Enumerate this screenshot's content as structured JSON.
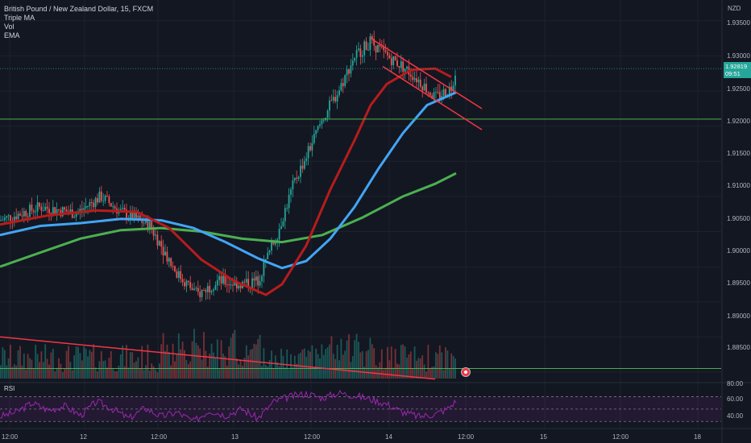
{
  "header": {
    "symbol_line": "British Pound / New Zealand Dollar, 15, FXCM",
    "indicators": [
      "Triple MA",
      "Vol",
      "EMA"
    ]
  },
  "price_axis": {
    "currency": "NZD",
    "ticks": [
      "1.93500",
      "1.93000",
      "1.92500",
      "1.92000",
      "1.91500",
      "1.91000",
      "1.90500",
      "1.90000",
      "1.89500",
      "1.89000",
      "1.88500"
    ]
  },
  "last_price": {
    "value": "1.92819",
    "countdown": "09:51"
  },
  "rsi": {
    "label": "RSI",
    "ticks": [
      "80.00",
      "60.00",
      "40.00"
    ]
  },
  "time_axis": {
    "ticks": [
      "12:00",
      "12",
      "12:00",
      "13",
      "12:00",
      "14",
      "12:00",
      "15",
      "12:00",
      "18"
    ]
  },
  "colors": {
    "background": "#131722",
    "up": "#26a69a",
    "down": "#ef5350",
    "ma_fast": "#ff2a2a",
    "ma_mid": "#42a5f5",
    "ma_slow": "#4caf50",
    "rsi": "#9c27b0",
    "trendline": "#f23645",
    "hline": "#4caf50"
  },
  "chart_data": {
    "type": "candlestick",
    "symbol": "GBP/NZD",
    "timeframe": "15",
    "y_range": [
      1.8835,
      1.9375
    ],
    "close_path": [
      [
        0,
        1.9066
      ],
      [
        50,
        1.9085
      ],
      [
        95,
        1.9076
      ],
      [
        125,
        1.91
      ],
      [
        150,
        1.9078
      ],
      [
        185,
        1.906
      ],
      [
        220,
        1.899
      ],
      [
        245,
        1.896
      ],
      [
        270,
        1.898
      ],
      [
        300,
        1.8975
      ],
      [
        320,
        1.898
      ],
      [
        345,
        1.905
      ],
      [
        365,
        1.912
      ],
      [
        385,
        1.917
      ],
      [
        400,
        1.921
      ],
      [
        420,
        1.925
      ],
      [
        440,
        1.93
      ],
      [
        460,
        1.932
      ],
      [
        480,
        1.93
      ],
      [
        500,
        1.9285
      ],
      [
        520,
        1.9265
      ],
      [
        540,
        1.924
      ],
      [
        560,
        1.9255
      ],
      [
        566,
        1.9282
      ]
    ],
    "ema_fast": [
      [
        0,
        1.906
      ],
      [
        60,
        1.9073
      ],
      [
        120,
        1.908
      ],
      [
        170,
        1.9078
      ],
      [
        210,
        1.9055
      ],
      [
        250,
        1.901
      ],
      [
        290,
        1.898
      ],
      [
        330,
        1.896
      ],
      [
        350,
        1.8975
      ],
      [
        380,
        1.903
      ],
      [
        410,
        1.911
      ],
      [
        440,
        1.918
      ],
      [
        460,
        1.923
      ],
      [
        480,
        1.926
      ],
      [
        510,
        1.928
      ],
      [
        540,
        1.9282
      ],
      [
        560,
        1.927
      ]
    ],
    "ma_mid": [
      [
        0,
        1.9045
      ],
      [
        50,
        1.9058
      ],
      [
        100,
        1.9062
      ],
      [
        150,
        1.9068
      ],
      [
        200,
        1.9066
      ],
      [
        240,
        1.9055
      ],
      [
        280,
        1.9035
      ],
      [
        320,
        1.9012
      ],
      [
        350,
        1.8998
      ],
      [
        380,
        1.9008
      ],
      [
        410,
        1.904
      ],
      [
        440,
        1.9085
      ],
      [
        470,
        1.914
      ],
      [
        500,
        1.919
      ],
      [
        530,
        1.923
      ],
      [
        566,
        1.9248
      ]
    ],
    "ma_slow": [
      [
        0,
        1.9
      ],
      [
        50,
        1.902
      ],
      [
        100,
        1.904
      ],
      [
        150,
        1.9052
      ],
      [
        200,
        1.9055
      ],
      [
        250,
        1.905
      ],
      [
        300,
        1.904
      ],
      [
        350,
        1.9035
      ],
      [
        400,
        1.9045
      ],
      [
        450,
        1.907
      ],
      [
        500,
        1.91
      ],
      [
        540,
        1.9118
      ],
      [
        566,
        1.9133
      ]
    ],
    "horizontal_lines": [
      1.921,
      1.8855
    ],
    "trendlines": [
      {
        "from": [
          0,
          1.89
        ],
        "to": [
          540,
          1.884
        ]
      },
      {
        "from": [
          460,
          1.9325
        ],
        "to": [
          598,
          1.9225
        ]
      },
      {
        "from": [
          475,
          1.9285
        ],
        "to": [
          598,
          1.9195
        ]
      }
    ],
    "rsi_range": [
      20,
      90
    ],
    "rsi_levels": [
      70,
      50,
      30
    ],
    "rsi_path": [
      [
        0,
        38
      ],
      [
        20,
        45
      ],
      [
        40,
        60
      ],
      [
        60,
        48
      ],
      [
        80,
        55
      ],
      [
        100,
        40
      ],
      [
        120,
        62
      ],
      [
        140,
        50
      ],
      [
        160,
        35
      ],
      [
        180,
        52
      ],
      [
        200,
        38
      ],
      [
        220,
        45
      ],
      [
        240,
        30
      ],
      [
        260,
        48
      ],
      [
        280,
        40
      ],
      [
        300,
        50
      ],
      [
        320,
        35
      ],
      [
        340,
        62
      ],
      [
        360,
        70
      ],
      [
        380,
        75
      ],
      [
        400,
        68
      ],
      [
        420,
        76
      ],
      [
        440,
        72
      ],
      [
        460,
        66
      ],
      [
        480,
        58
      ],
      [
        500,
        45
      ],
      [
        520,
        38
      ],
      [
        540,
        42
      ],
      [
        555,
        50
      ],
      [
        566,
        63
      ]
    ]
  }
}
